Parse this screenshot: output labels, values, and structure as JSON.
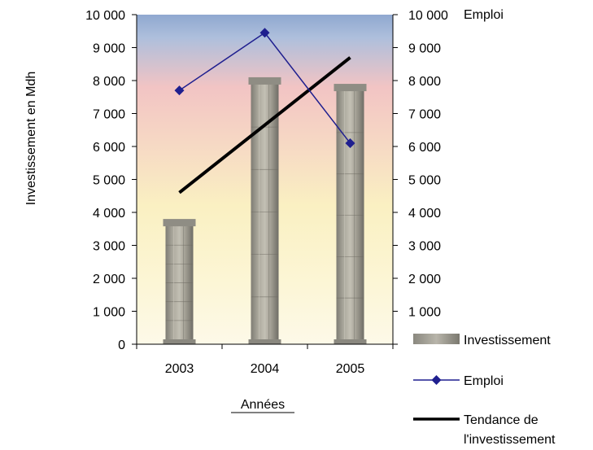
{
  "chart_data": {
    "type": "bar",
    "categories": [
      "2003",
      "2004",
      "2005"
    ],
    "ylabel": "Investissement en  Mdh",
    "y2label": "Emploi",
    "xlabel": "Années",
    "ylim": [
      0,
      10000
    ],
    "y2lim": [
      0,
      10000
    ],
    "yticks": [
      "0",
      "1 000",
      "2 000",
      "3 000",
      "4 000",
      "5 000",
      "6 000",
      "7 000",
      "8 000",
      "9 000",
      "10 000"
    ],
    "y2ticks": [
      "",
      "1 000",
      "2 000",
      "3 000",
      "4 000",
      "5 000",
      "6 000",
      "7 000",
      "8 000",
      "9 000",
      "10 000"
    ],
    "series": [
      {
        "name": "Investissement",
        "type": "bar",
        "axis": "left",
        "values": [
          3800,
          8100,
          7900
        ]
      },
      {
        "name": "Emploi",
        "type": "line",
        "axis": "right",
        "marker": "diamond",
        "color": "#1F1F8F",
        "values": [
          7700,
          9450,
          6100
        ]
      },
      {
        "name": "Tendance de l'investissement",
        "type": "trendline",
        "axis": "left",
        "color": "#000000",
        "values": [
          4600,
          6650,
          8700
        ]
      }
    ],
    "legend": {
      "position": "bottom-right",
      "entries": [
        "Investissement",
        "Emploi",
        "Tendance de",
        "l'investissement"
      ]
    },
    "background": "gradient sky: blue top, pink middle, pale yellow bottom",
    "bar_style": "stone column texture",
    "grid": false
  }
}
